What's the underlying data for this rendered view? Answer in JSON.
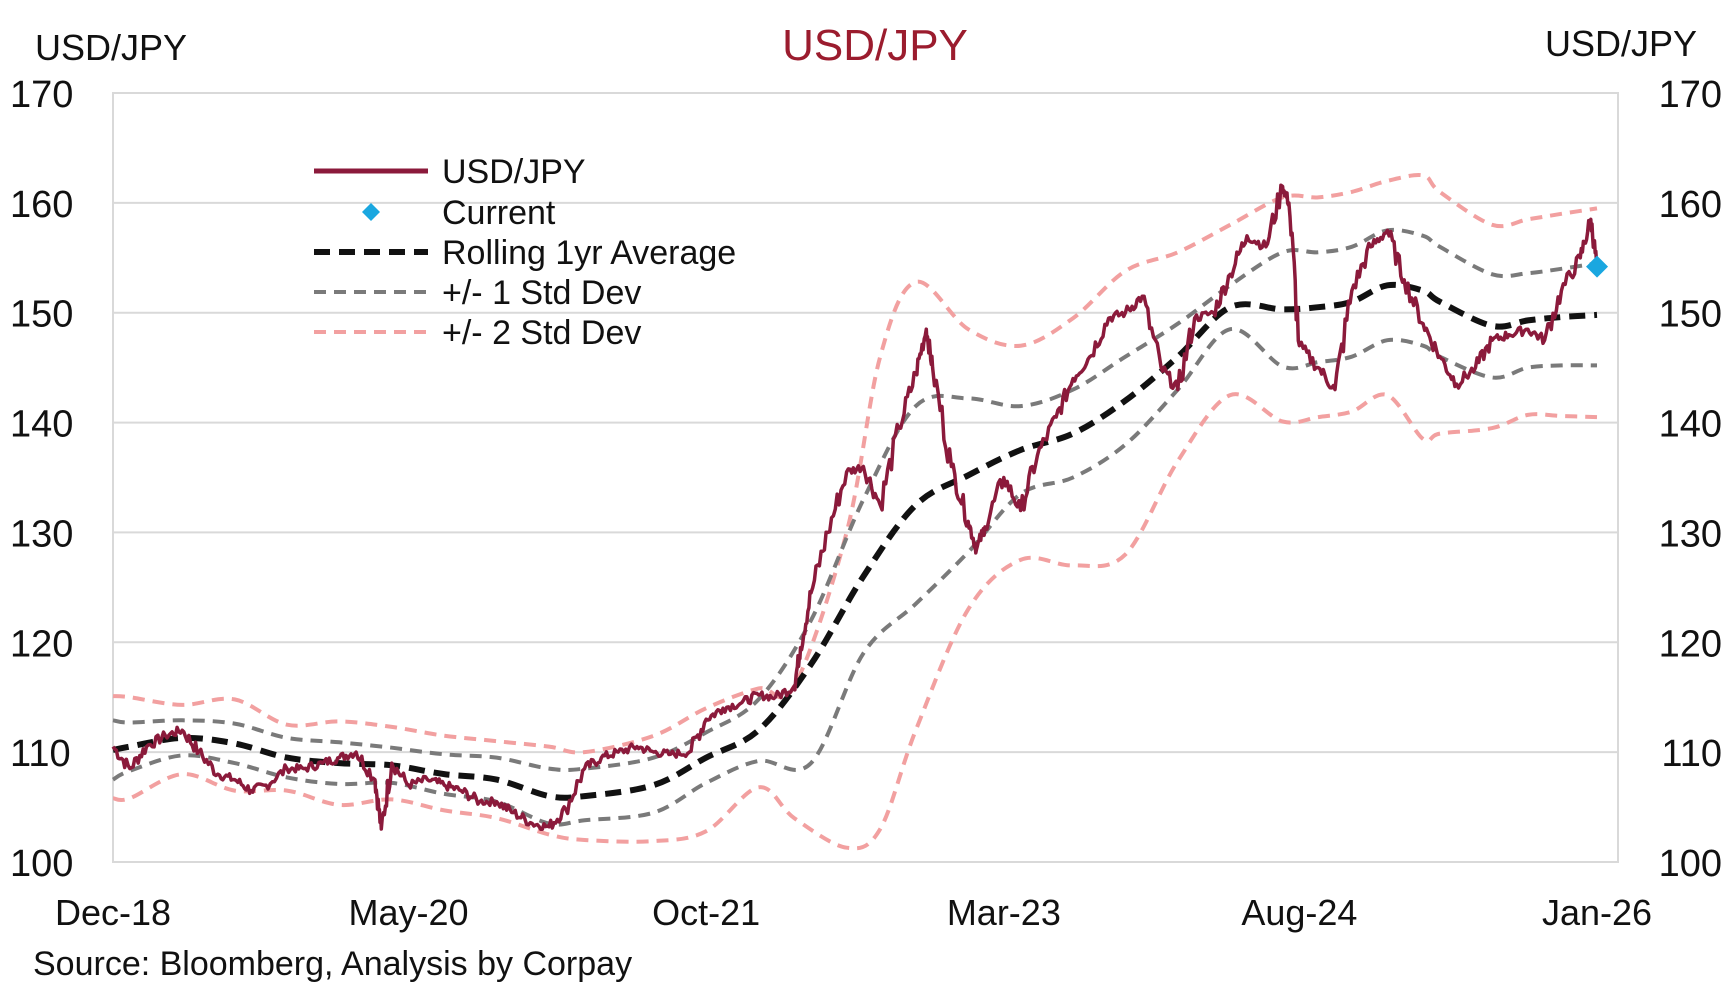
{
  "chart_data": {
    "type": "line",
    "title": "USD/JPY",
    "left_axis_label": "USD/JPY",
    "right_axis_label": "USD/JPY",
    "source": "Source: Bloomberg, Analysis by Corpay",
    "ylim": [
      100,
      170
    ],
    "yticks": [
      "100",
      "110",
      "120",
      "130",
      "140",
      "150",
      "160",
      "170"
    ],
    "ytick_values": [
      100,
      110,
      120,
      130,
      140,
      150,
      160,
      170
    ],
    "xlim": [
      2018.92,
      2026.1
    ],
    "xticks": [
      {
        "label": "Dec-18",
        "t": 2018.92
      },
      {
        "label": "May-20",
        "t": 2020.33
      },
      {
        "label": "Oct-21",
        "t": 2021.75
      },
      {
        "label": "Mar-23",
        "t": 2023.17
      },
      {
        "label": "Aug-24",
        "t": 2024.58
      },
      {
        "label": "Jan-26",
        "t": 2026.0
      }
    ],
    "gridlines": "horizontal",
    "legend_position": "upper-left",
    "colors": {
      "title": "#9b1c2e",
      "spot": "#8b1a3b",
      "current": "#1aa7e0",
      "average": "#111111",
      "std1": "#7a7a7a",
      "std2": "#f2a0a0",
      "grid": "#d9d9d9"
    },
    "series": [
      {
        "name": "USD/JPY",
        "style": "solid",
        "x": [
          2018.92,
          2019.0,
          2019.08,
          2019.17,
          2019.25,
          2019.33,
          2019.42,
          2019.5,
          2019.58,
          2019.65,
          2019.75,
          2019.83,
          2019.92,
          2020.0,
          2020.08,
          2020.17,
          2020.2,
          2020.25,
          2020.33,
          2020.42,
          2020.5,
          2020.58,
          2020.67,
          2020.75,
          2020.83,
          2020.92,
          2021.0,
          2021.08,
          2021.17,
          2021.25,
          2021.33,
          2021.42,
          2021.5,
          2021.58,
          2021.67,
          2021.75,
          2021.83,
          2021.92,
          2022.0,
          2022.08,
          2022.17,
          2022.2,
          2022.25,
          2022.33,
          2022.42,
          2022.5,
          2022.58,
          2022.67,
          2022.75,
          2022.8,
          2022.83,
          2022.92,
          2023.0,
          2023.04,
          2023.08,
          2023.17,
          2023.25,
          2023.33,
          2023.42,
          2023.5,
          2023.58,
          2023.67,
          2023.75,
          2023.83,
          2023.92,
          2024.0,
          2024.08,
          2024.17,
          2024.25,
          2024.33,
          2024.42,
          2024.5,
          2024.53,
          2024.58,
          2024.67,
          2024.75,
          2024.83,
          2024.92,
          2025.0,
          2025.08,
          2025.17,
          2025.25,
          2025.33,
          2025.42,
          2025.5,
          2025.58,
          2025.67,
          2025.75,
          2025.83,
          2025.92,
          2025.97,
          2026.0
        ],
        "values": [
          110.5,
          108.5,
          110.5,
          111.5,
          112.0,
          110.0,
          108.0,
          107.5,
          106.5,
          107.0,
          108.5,
          108.5,
          109.0,
          109.5,
          110.0,
          107.5,
          103.0,
          109.0,
          107.0,
          107.5,
          107.0,
          106.5,
          105.5,
          105.5,
          104.5,
          103.5,
          103.2,
          104.8,
          108.5,
          109.5,
          110.0,
          110.5,
          110.0,
          109.8,
          110.0,
          113.0,
          114.0,
          114.5,
          115.2,
          115.0,
          116.0,
          119.5,
          124.5,
          130.0,
          135.5,
          136.0,
          132.5,
          139.5,
          144.5,
          148.5,
          145.0,
          136.0,
          131.0,
          128.5,
          130.5,
          135.0,
          132.0,
          137.0,
          140.5,
          144.0,
          146.0,
          149.5,
          150.0,
          151.5,
          145.0,
          143.0,
          149.5,
          150.0,
          153.5,
          157.0,
          156.0,
          161.5,
          160.0,
          147.0,
          145.0,
          143.0,
          152.0,
          156.0,
          157.5,
          153.0,
          149.0,
          146.0,
          143.5,
          145.0,
          147.5,
          148.0,
          148.5,
          147.5,
          152.0,
          155.0,
          158.5,
          154.2
        ]
      },
      {
        "name": "Rolling 1yr Average",
        "style": "dashed",
        "x": [
          2018.92,
          2019.0,
          2019.25,
          2019.5,
          2019.75,
          2020.0,
          2020.25,
          2020.5,
          2020.75,
          2021.0,
          2021.17,
          2021.5,
          2021.75,
          2022.0,
          2022.25,
          2022.5,
          2022.75,
          2023.0,
          2023.25,
          2023.5,
          2023.75,
          2024.0,
          2024.25,
          2024.5,
          2024.67,
          2024.83,
          2025.0,
          2025.17,
          2025.25,
          2025.5,
          2025.67,
          2025.83,
          2026.0
        ],
        "values": [
          110.2,
          110.5,
          111.3,
          110.8,
          109.5,
          109.0,
          108.8,
          108.0,
          107.5,
          106.0,
          106.0,
          107.0,
          109.5,
          112.0,
          118.0,
          126.0,
          132.5,
          135.2,
          137.5,
          139.0,
          142.0,
          146.0,
          150.5,
          150.3,
          150.5,
          151.0,
          152.5,
          152.0,
          151.0,
          148.8,
          149.3,
          149.6,
          149.8
        ]
      },
      {
        "name": "+/- 1 Std Dev",
        "style": "dashed",
        "x": [
          2018.92,
          2019.0,
          2019.25,
          2019.5,
          2019.75,
          2020.0,
          2020.25,
          2020.5,
          2020.75,
          2021.0,
          2021.17,
          2021.5,
          2021.75,
          2022.0,
          2022.25,
          2022.5,
          2022.75,
          2023.0,
          2023.25,
          2023.5,
          2023.75,
          2024.0,
          2024.25,
          2024.5,
          2024.67,
          2024.83,
          2025.0,
          2025.17,
          2025.25,
          2025.5,
          2025.67,
          2025.83,
          2026.0
        ],
        "values_upper": [
          112.9,
          112.7,
          112.9,
          112.6,
          111.3,
          110.9,
          110.4,
          109.8,
          109.5,
          108.5,
          108.5,
          109.5,
          111.8,
          114.8,
          122.0,
          133.0,
          141.5,
          142.2,
          141.5,
          143.0,
          146.0,
          149.0,
          152.5,
          155.5,
          155.5,
          156.0,
          157.5,
          157.0,
          156.0,
          153.5,
          153.6,
          154.0,
          154.5
        ],
        "values_lower": [
          107.5,
          108.3,
          109.7,
          109.0,
          107.7,
          107.1,
          107.2,
          106.2,
          105.5,
          103.5,
          103.8,
          104.5,
          107.2,
          109.2,
          109.0,
          119.0,
          123.5,
          128.2,
          133.5,
          135.0,
          138.0,
          143.0,
          148.5,
          145.1,
          145.5,
          146.0,
          147.5,
          147.0,
          146.0,
          144.1,
          145.0,
          145.2,
          145.2
        ]
      },
      {
        "name": "+/- 2 Std Dev",
        "style": "dashed",
        "x": [
          2018.92,
          2019.0,
          2019.25,
          2019.5,
          2019.75,
          2020.0,
          2020.25,
          2020.5,
          2020.75,
          2021.0,
          2021.17,
          2021.5,
          2021.75,
          2022.0,
          2022.17,
          2022.42,
          2022.58,
          2022.75,
          2023.0,
          2023.25,
          2023.5,
          2023.75,
          2024.0,
          2024.25,
          2024.5,
          2024.67,
          2024.83,
          2025.0,
          2025.17,
          2025.25,
          2025.5,
          2025.67,
          2025.83,
          2026.0
        ],
        "values_upper": [
          115.1,
          115.0,
          114.3,
          114.8,
          112.5,
          112.8,
          112.3,
          111.5,
          111.0,
          110.5,
          110.0,
          111.5,
          114.0,
          115.8,
          116.0,
          130.0,
          146.0,
          152.8,
          148.5,
          147.0,
          149.5,
          153.8,
          155.5,
          158.0,
          160.5,
          160.5,
          161.0,
          162.0,
          162.5,
          161.0,
          158.0,
          158.5,
          159.0,
          159.5
        ],
        "values_lower": [
          105.8,
          105.8,
          108.0,
          106.5,
          106.5,
          105.2,
          105.7,
          104.7,
          104.0,
          102.5,
          102.0,
          101.9,
          102.8,
          106.8,
          104.0,
          101.3,
          103.0,
          112.0,
          123.0,
          127.5,
          127.0,
          128.0,
          136.5,
          142.5,
          140.1,
          140.5,
          141.0,
          142.5,
          138.5,
          139.0,
          139.5,
          140.7,
          140.6,
          140.5
        ]
      }
    ],
    "current": {
      "name": "Current",
      "x": 2026.0,
      "value": 154.2
    },
    "legend": [
      {
        "key": "spot",
        "label": "USD/JPY"
      },
      {
        "key": "current",
        "label": "Current"
      },
      {
        "key": "average",
        "label": "Rolling 1yr Average"
      },
      {
        "key": "std1",
        "label": "+/- 1 Std Dev"
      },
      {
        "key": "std2",
        "label": "+/- 2 Std Dev"
      }
    ]
  }
}
